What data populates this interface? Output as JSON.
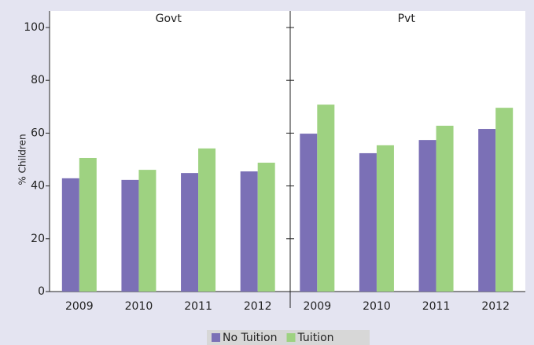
{
  "chart_data": {
    "type": "bar",
    "y_label": "% Children",
    "ylim": [
      0,
      100
    ],
    "yticks": [
      0,
      20,
      40,
      60,
      80,
      100
    ],
    "categories": [
      "2009",
      "2010",
      "2011",
      "2012"
    ],
    "series": [
      {
        "name": "No Tuition",
        "color": "#7b70b6"
      },
      {
        "name": "Tuition",
        "color": "#9ed281"
      }
    ],
    "panels": [
      {
        "title": "Govt",
        "series": [
          {
            "values": [
              42.9,
              42.3,
              44.9,
              45.5
            ]
          },
          {
            "values": [
              50.6,
              46.1,
              54.2,
              48.8
            ]
          }
        ]
      },
      {
        "title": "Pvt",
        "series": [
          {
            "values": [
              59.8,
              52.4,
              57.4,
              61.6
            ]
          },
          {
            "values": [
              70.8,
              55.4,
              62.8,
              69.6
            ]
          }
        ]
      }
    ]
  }
}
